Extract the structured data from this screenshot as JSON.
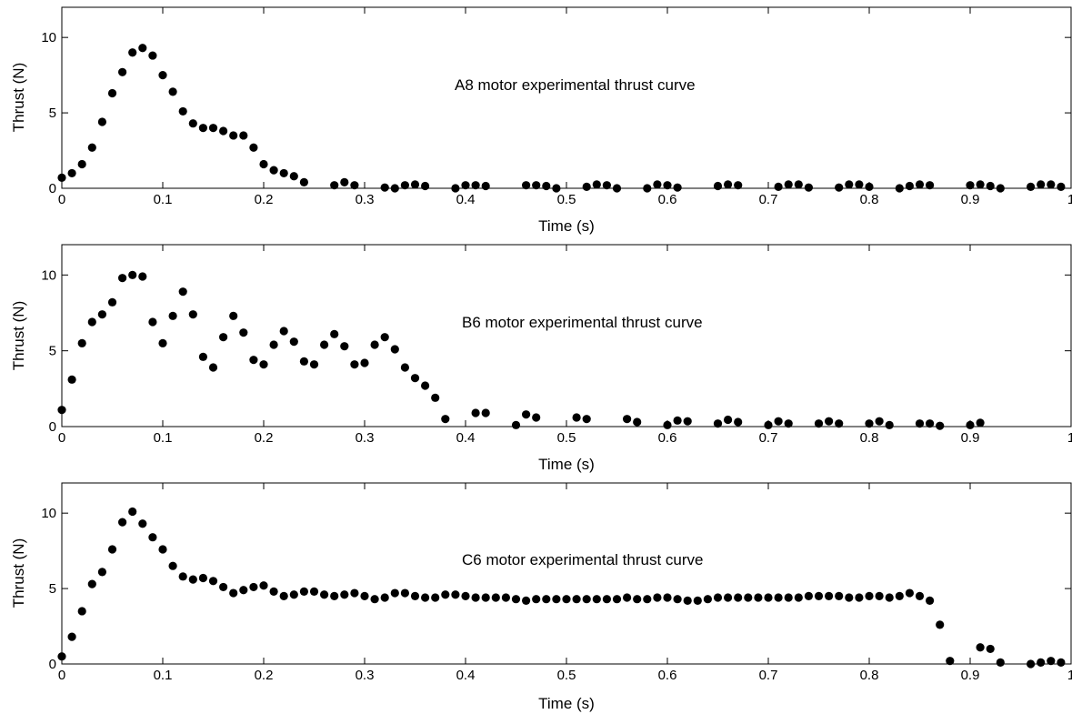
{
  "chart_data": [
    {
      "type": "scatter",
      "title": "",
      "annotation": "A8 motor experimental thrust curve",
      "xlabel": "Time (s)",
      "ylabel": "Thrust (N)",
      "xlim": [
        0,
        1
      ],
      "ylim": [
        0,
        12
      ],
      "xticks": [
        "0",
        "0.1",
        "0.2",
        "0.3",
        "0.4",
        "0.5",
        "0.6",
        "0.7",
        "0.8",
        "0.9",
        "1"
      ],
      "yticks": [
        "0",
        "5",
        "10"
      ],
      "grid": false,
      "marker_color": "#000000",
      "series": [
        {
          "x": [
            0,
            0.01,
            0.02,
            0.03,
            0.04,
            0.05,
            0.06,
            0.07,
            0.08,
            0.09,
            0.1,
            0.11,
            0.12,
            0.13,
            0.14,
            0.15,
            0.16,
            0.17,
            0.18,
            0.19,
            0.2,
            0.21,
            0.22,
            0.23,
            0.24,
            0.27,
            0.28,
            0.29,
            0.32,
            0.33,
            0.34,
            0.35,
            0.36,
            0.39,
            0.4,
            0.41,
            0.42,
            0.46,
            0.47,
            0.48,
            0.49,
            0.52,
            0.53,
            0.54,
            0.55,
            0.58,
            0.59,
            0.6,
            0.61,
            0.65,
            0.66,
            0.67,
            0.71,
            0.72,
            0.73,
            0.74,
            0.77,
            0.78,
            0.79,
            0.8,
            0.83,
            0.84,
            0.85,
            0.86,
            0.9,
            0.91,
            0.92,
            0.93,
            0.96,
            0.97,
            0.98,
            0.99
          ],
          "y": [
            0.7,
            1.0,
            1.6,
            2.7,
            4.4,
            6.3,
            7.7,
            9.0,
            9.3,
            8.8,
            7.5,
            6.4,
            5.1,
            4.3,
            4.0,
            4.0,
            3.8,
            3.5,
            3.5,
            2.7,
            1.6,
            1.2,
            1.0,
            0.8,
            0.4,
            0.2,
            0.4,
            0.2,
            0.05,
            0.0,
            0.2,
            0.25,
            0.15,
            0.0,
            0.2,
            0.2,
            0.15,
            0.2,
            0.2,
            0.15,
            0.0,
            0.1,
            0.25,
            0.2,
            0.0,
            0.0,
            0.25,
            0.2,
            0.05,
            0.15,
            0.25,
            0.2,
            0.1,
            0.25,
            0.25,
            0.05,
            0.05,
            0.25,
            0.25,
            0.1,
            0.0,
            0.15,
            0.25,
            0.2,
            0.2,
            0.25,
            0.15,
            0.0,
            0.1,
            0.25,
            0.25,
            0.1
          ]
        }
      ]
    },
    {
      "type": "scatter",
      "title": "",
      "annotation": "B6 motor experimental thrust curve",
      "xlabel": "Time (s)",
      "ylabel": "Thrust (N)",
      "xlim": [
        0,
        1
      ],
      "ylim": [
        0,
        12
      ],
      "xticks": [
        "0",
        "0.1",
        "0.2",
        "0.3",
        "0.4",
        "0.5",
        "0.6",
        "0.7",
        "0.8",
        "0.9",
        "1"
      ],
      "yticks": [
        "0",
        "5",
        "10"
      ],
      "grid": false,
      "marker_color": "#000000",
      "series": [
        {
          "x": [
            0,
            0.01,
            0.02,
            0.03,
            0.04,
            0.05,
            0.06,
            0.07,
            0.08,
            0.09,
            0.1,
            0.11,
            0.12,
            0.13,
            0.14,
            0.15,
            0.16,
            0.17,
            0.18,
            0.19,
            0.2,
            0.21,
            0.22,
            0.23,
            0.24,
            0.25,
            0.26,
            0.27,
            0.28,
            0.29,
            0.3,
            0.31,
            0.32,
            0.33,
            0.34,
            0.35,
            0.36,
            0.37,
            0.38,
            0.41,
            0.42,
            0.45,
            0.46,
            0.47,
            0.51,
            0.52,
            0.56,
            0.57,
            0.6,
            0.61,
            0.62,
            0.65,
            0.66,
            0.67,
            0.7,
            0.71,
            0.72,
            0.75,
            0.76,
            0.77,
            0.8,
            0.81,
            0.82,
            0.85,
            0.86,
            0.87,
            0.9,
            0.91
          ],
          "y": [
            1.1,
            3.1,
            5.5,
            6.9,
            7.4,
            8.2,
            9.8,
            10.0,
            9.9,
            6.9,
            5.5,
            7.3,
            8.9,
            7.4,
            4.6,
            3.9,
            5.9,
            7.3,
            6.2,
            4.4,
            4.1,
            5.4,
            6.3,
            5.6,
            4.3,
            4.1,
            5.4,
            6.1,
            5.3,
            4.1,
            4.2,
            5.4,
            5.9,
            5.1,
            3.9,
            3.2,
            2.7,
            1.9,
            0.5,
            0.9,
            0.9,
            0.1,
            0.8,
            0.6,
            0.6,
            0.5,
            0.5,
            0.3,
            0.1,
            0.4,
            0.35,
            0.2,
            0.45,
            0.3,
            0.1,
            0.35,
            0.2,
            0.2,
            0.35,
            0.2,
            0.2,
            0.35,
            0.1,
            0.2,
            0.2,
            0.05,
            0.1,
            0.25
          ]
        }
      ]
    },
    {
      "type": "scatter",
      "title": "",
      "annotation": "C6 motor experimental thrust curve",
      "xlabel": "Time (s)",
      "ylabel": "Thrust (N)",
      "xlim": [
        0,
        1
      ],
      "ylim": [
        0,
        12
      ],
      "xticks": [
        "0",
        "0.1",
        "0.2",
        "0.3",
        "0.4",
        "0.5",
        "0.6",
        "0.7",
        "0.8",
        "0.9",
        "1"
      ],
      "yticks": [
        "0",
        "5",
        "10"
      ],
      "grid": false,
      "marker_color": "#000000",
      "series": [
        {
          "x": [
            0,
            0.01,
            0.02,
            0.03,
            0.04,
            0.05,
            0.06,
            0.07,
            0.08,
            0.09,
            0.1,
            0.11,
            0.12,
            0.13,
            0.14,
            0.15,
            0.16,
            0.17,
            0.18,
            0.19,
            0.2,
            0.21,
            0.22,
            0.23,
            0.24,
            0.25,
            0.26,
            0.27,
            0.28,
            0.29,
            0.3,
            0.31,
            0.32,
            0.33,
            0.34,
            0.35,
            0.36,
            0.37,
            0.38,
            0.39,
            0.4,
            0.41,
            0.42,
            0.43,
            0.44,
            0.45,
            0.46,
            0.47,
            0.48,
            0.49,
            0.5,
            0.51,
            0.52,
            0.53,
            0.54,
            0.55,
            0.56,
            0.57,
            0.58,
            0.59,
            0.6,
            0.61,
            0.62,
            0.63,
            0.64,
            0.65,
            0.66,
            0.67,
            0.68,
            0.69,
            0.7,
            0.71,
            0.72,
            0.73,
            0.74,
            0.75,
            0.76,
            0.77,
            0.78,
            0.79,
            0.8,
            0.81,
            0.82,
            0.83,
            0.84,
            0.85,
            0.86,
            0.87,
            0.88,
            0.91,
            0.92,
            0.93,
            0.96,
            0.97,
            0.98,
            0.99
          ],
          "y": [
            0.5,
            1.8,
            3.5,
            5.3,
            6.1,
            7.6,
            9.4,
            10.1,
            9.3,
            8.4,
            7.6,
            6.5,
            5.8,
            5.6,
            5.7,
            5.5,
            5.1,
            4.7,
            4.9,
            5.1,
            5.2,
            4.8,
            4.5,
            4.6,
            4.8,
            4.8,
            4.6,
            4.5,
            4.6,
            4.7,
            4.5,
            4.3,
            4.4,
            4.7,
            4.7,
            4.5,
            4.4,
            4.4,
            4.6,
            4.6,
            4.5,
            4.4,
            4.4,
            4.4,
            4.4,
            4.3,
            4.2,
            4.3,
            4.3,
            4.3,
            4.3,
            4.3,
            4.3,
            4.3,
            4.3,
            4.3,
            4.4,
            4.3,
            4.3,
            4.4,
            4.4,
            4.3,
            4.2,
            4.2,
            4.3,
            4.4,
            4.4,
            4.4,
            4.4,
            4.4,
            4.4,
            4.4,
            4.4,
            4.4,
            4.5,
            4.5,
            4.5,
            4.5,
            4.4,
            4.4,
            4.5,
            4.5,
            4.4,
            4.5,
            4.7,
            4.5,
            4.2,
            2.6,
            0.2,
            1.1,
            1.0,
            0.1,
            0.0,
            0.1,
            0.2,
            0.1
          ]
        }
      ]
    }
  ]
}
